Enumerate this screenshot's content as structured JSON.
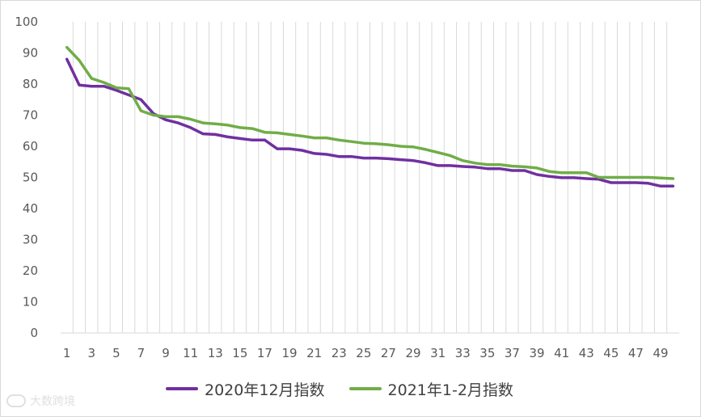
{
  "chart_data": {
    "type": "line",
    "x": [
      1,
      2,
      3,
      4,
      5,
      6,
      7,
      8,
      9,
      10,
      11,
      12,
      13,
      14,
      15,
      16,
      17,
      18,
      19,
      20,
      21,
      22,
      23,
      24,
      25,
      26,
      27,
      28,
      29,
      30,
      31,
      32,
      33,
      34,
      35,
      36,
      37,
      38,
      39,
      40,
      41,
      42,
      43,
      44,
      45,
      46,
      47,
      48,
      49,
      50
    ],
    "x_tick_labels": [
      "1",
      "3",
      "5",
      "7",
      "9",
      "11",
      "13",
      "15",
      "17",
      "19",
      "21",
      "23",
      "25",
      "27",
      "29",
      "31",
      "33",
      "35",
      "37",
      "39",
      "41",
      "43",
      "45",
      "47",
      "49"
    ],
    "ylim": [
      0,
      100
    ],
    "y_ticks": [
      0,
      10,
      20,
      30,
      40,
      50,
      60,
      70,
      80,
      90,
      100
    ],
    "grid": "vertical lines at each category",
    "legend_position": "bottom",
    "series": [
      {
        "name": "2020年12月指数",
        "color": "#7030a0",
        "values": [
          88.0,
          79.7,
          79.3,
          79.3,
          78.0,
          76.5,
          75.0,
          70.5,
          68.5,
          67.5,
          66.0,
          64.0,
          63.8,
          63.0,
          62.5,
          62.0,
          62.0,
          59.2,
          59.2,
          58.7,
          57.7,
          57.4,
          56.7,
          56.7,
          56.2,
          56.2,
          56.0,
          55.7,
          55.4,
          54.7,
          53.8,
          53.8,
          53.5,
          53.3,
          52.8,
          52.8,
          52.2,
          52.2,
          50.9,
          50.3,
          49.9,
          49.9,
          49.6,
          49.4,
          48.3,
          48.3,
          48.3,
          48.1,
          47.2,
          47.2
        ]
      },
      {
        "name": "2021年1-2月指数",
        "color": "#70ad47",
        "values": [
          91.8,
          87.6,
          81.8,
          80.5,
          78.8,
          78.5,
          71.4,
          70.0,
          69.5,
          69.5,
          68.7,
          67.5,
          67.2,
          66.8,
          66.0,
          65.7,
          64.5,
          64.3,
          63.8,
          63.3,
          62.7,
          62.7,
          62.0,
          61.5,
          61.0,
          60.8,
          60.5,
          60.0,
          59.8,
          59.0,
          58.0,
          57.0,
          55.4,
          54.6,
          54.1,
          54.1,
          53.6,
          53.4,
          53.0,
          51.9,
          51.5,
          51.5,
          51.5,
          50.0,
          50.0,
          50.0,
          50.0,
          50.0,
          49.8,
          49.6
        ]
      }
    ]
  },
  "watermark": {
    "text": "大数跨境"
  }
}
